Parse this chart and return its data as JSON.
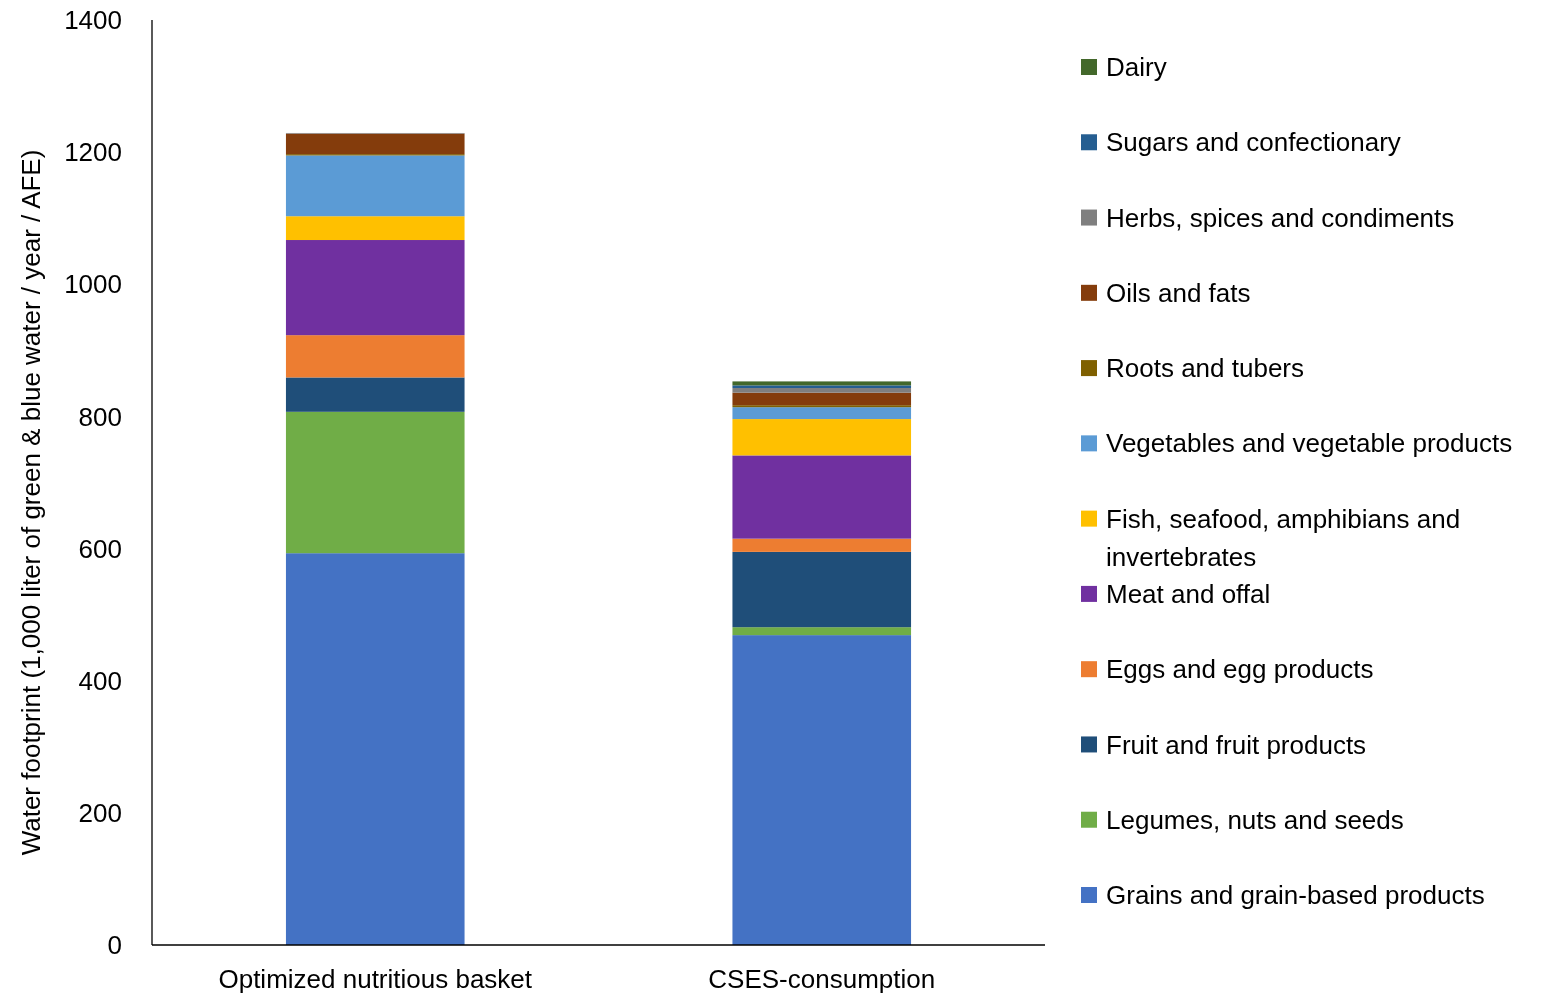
{
  "chart_data": {
    "type": "bar",
    "stacked": true,
    "ylabel": "Water footprint (1,000 liter of green & blue water / year / AFE)",
    "categories": [
      "Optimized nutritious basket",
      "CSES-consumption"
    ],
    "ylim": [
      0,
      1400
    ],
    "yticks": [
      0,
      200,
      400,
      600,
      800,
      1000,
      1200,
      1400
    ],
    "grid": false,
    "legend": "right",
    "series": [
      {
        "name": "Grains and grain-based products",
        "color": "#4472c4",
        "values": [
          593,
          469
        ]
      },
      {
        "name": "Legumes, nuts and seeds",
        "color": "#70ad47",
        "values": [
          214,
          12
        ]
      },
      {
        "name": "Fruit and fruit products",
        "color": "#1f4e79",
        "values": [
          52,
          114
        ]
      },
      {
        "name": "Eggs and egg products",
        "color": "#ed7d31",
        "values": [
          64,
          20
        ]
      },
      {
        "name": "Meat and offal",
        "color": "#7030a0",
        "values": [
          144,
          126
        ]
      },
      {
        "name": "Fish, seafood, amphibians and invertebrates",
        "color": "#ffc000",
        "values": [
          36,
          55
        ]
      },
      {
        "name": "Vegetables and vegetable products",
        "color": "#5b9bd5",
        "values": [
          92,
          18
        ]
      },
      {
        "name": "Roots and tubers",
        "color": "#7f6000",
        "values": [
          2,
          3
        ]
      },
      {
        "name": "Oils and fats",
        "color": "#843c0c",
        "values": [
          31,
          19
        ]
      },
      {
        "name": "Herbs, spices and condiments",
        "color": "#7f7f7f",
        "values": [
          1,
          7
        ]
      },
      {
        "name": "Sugars and confectionary",
        "color": "#255e91",
        "values": [
          0,
          4
        ]
      },
      {
        "name": "Dairy",
        "color": "#43682b",
        "values": [
          0,
          6
        ]
      }
    ]
  }
}
